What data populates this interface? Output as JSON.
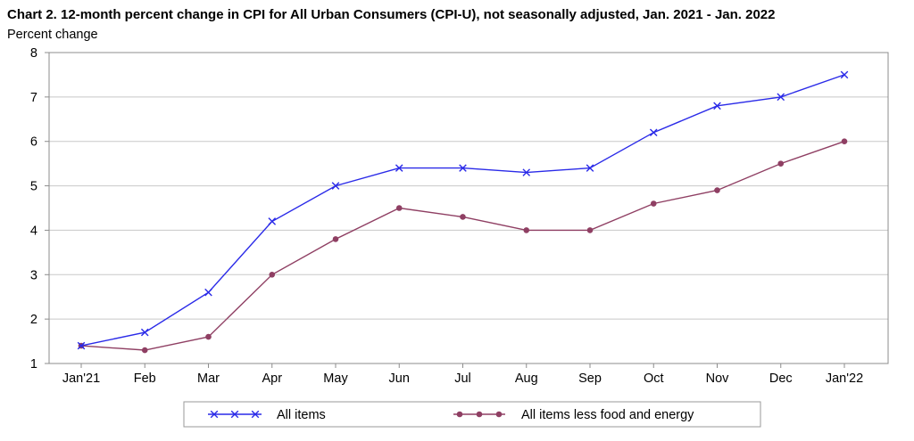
{
  "chart_data": {
    "type": "line",
    "title": "Chart 2. 12-month percent change in CPI for All Urban Consumers (CPI-U), not seasonally adjusted, Jan. 2021 - Jan. 2022",
    "ylabel": "Percent change",
    "xlabel": "",
    "categories": [
      "Jan'21",
      "Feb",
      "Mar",
      "Apr",
      "May",
      "Jun",
      "Jul",
      "Aug",
      "Sep",
      "Oct",
      "Nov",
      "Dec",
      "Jan'22"
    ],
    "ylim": [
      1,
      8
    ],
    "yticks": [
      "1",
      "2",
      "3",
      "4",
      "5",
      "6",
      "7",
      "8"
    ],
    "grid": true,
    "legend_position": "bottom",
    "series": [
      {
        "name": "All items",
        "color": "#2a2ae8",
        "marker": "x",
        "values": [
          1.4,
          1.7,
          2.6,
          4.2,
          5.0,
          5.4,
          5.4,
          5.3,
          5.4,
          6.2,
          6.8,
          7.0,
          7.5
        ]
      },
      {
        "name": "All items less food and energy",
        "color": "#8f3f63",
        "marker": "dot",
        "values": [
          1.4,
          1.3,
          1.6,
          3.0,
          3.8,
          4.5,
          4.3,
          4.0,
          4.0,
          4.6,
          4.9,
          5.5,
          6.0
        ]
      }
    ]
  }
}
